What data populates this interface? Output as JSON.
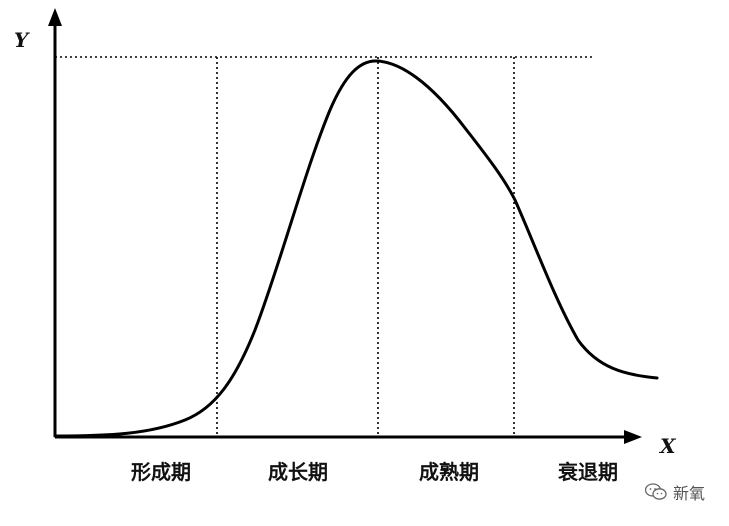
{
  "axes": {
    "y_label": "Y",
    "x_label": "X"
  },
  "stages": [
    {
      "label": "形成期"
    },
    {
      "label": "成长期"
    },
    {
      "label": "成熟期"
    },
    {
      "label": "衰退期"
    }
  ],
  "watermark": {
    "text": "新氧",
    "icon": "wechat-icon"
  },
  "colors": {
    "line": "#000000",
    "background": "#ffffff"
  }
}
